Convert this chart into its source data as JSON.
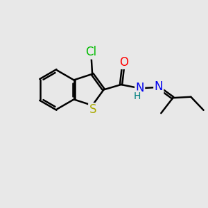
{
  "background_color": "#e8e8e8",
  "bond_color": "#000000",
  "atom_colors": {
    "Cl": "#00bb00",
    "S": "#aaaa00",
    "O": "#ff0000",
    "N": "#0000ee",
    "H": "#008080",
    "C": "#000000"
  },
  "bond_width": 1.8,
  "dbo": 0.055,
  "figsize": [
    3.0,
    3.0
  ],
  "dpi": 100
}
